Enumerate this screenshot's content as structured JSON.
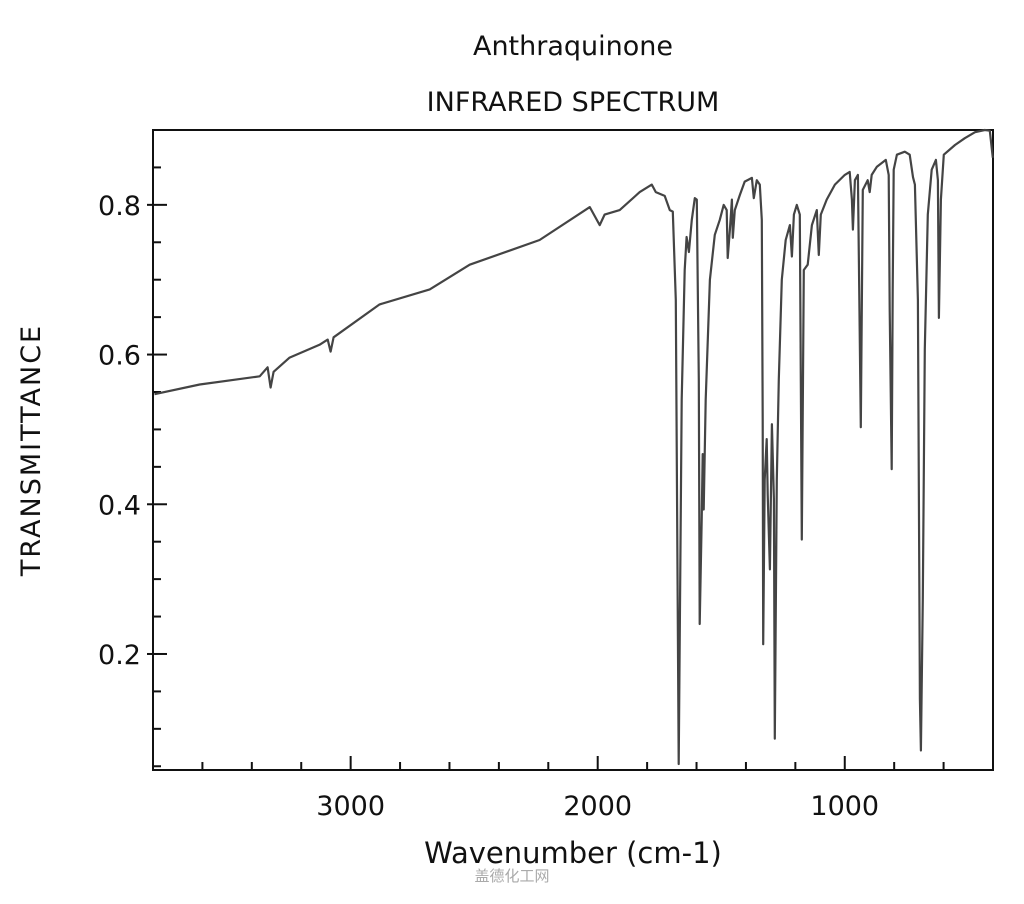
{
  "chart_data": {
    "type": "line",
    "title": "Anthraquinone",
    "subtitle": "INFRARED SPECTRUM",
    "xlabel": "Wavenumber (cm-1)",
    "ylabel": "TRANSMITTANCE",
    "xlim": [
      3800,
      400
    ],
    "x_reversed": true,
    "ylim": [
      0.045,
      0.9
    ],
    "x_ticks": [
      3000,
      2000,
      1000
    ],
    "x_tick_labels": [
      "3000",
      "2000",
      "1000"
    ],
    "y_ticks": [
      0.2,
      0.4,
      0.6,
      0.8
    ],
    "y_tick_labels": [
      "0.2",
      "0.4",
      "0.6",
      "0.8"
    ],
    "grid": false,
    "line_color": "#444444",
    "series": [
      {
        "x": [
          3794,
          3611,
          3368,
          3336,
          3324,
          3312,
          3247,
          3126,
          3093,
          3081,
          3069,
          2883,
          2680,
          2518,
          2235,
          2032,
          1992,
          1972,
          1911,
          1830,
          1781,
          1765,
          1729,
          1708,
          1696,
          1684,
          1672,
          1660,
          1648,
          1640,
          1631,
          1619,
          1607,
          1599,
          1591,
          1587,
          1579,
          1575,
          1571,
          1563,
          1546,
          1526,
          1506,
          1490,
          1478,
          1474,
          1465,
          1457,
          1453,
          1445,
          1425,
          1405,
          1376,
          1368,
          1356,
          1344,
          1336,
          1332,
          1330,
          1324,
          1316,
          1312,
          1303,
          1295,
          1287,
          1283,
          1275,
          1267,
          1255,
          1239,
          1222,
          1214,
          1206,
          1194,
          1182,
          1174,
          1166,
          1150,
          1133,
          1113,
          1105,
          1097,
          1073,
          1040,
          1000,
          980,
          971,
          967,
          959,
          947,
          935,
          927,
          907,
          899,
          891,
          870,
          834,
          822,
          818,
          810,
          806,
          802,
          789,
          757,
          737,
          724,
          716,
          704,
          696,
          692,
          684,
          676,
          664,
          648,
          631,
          623,
          619,
          611,
          599,
          554,
          514,
          473,
          433,
          413,
          401
        ],
        "y": [
          0.547,
          0.56,
          0.571,
          0.583,
          0.556,
          0.577,
          0.596,
          0.613,
          0.62,
          0.604,
          0.623,
          0.667,
          0.687,
          0.72,
          0.753,
          0.797,
          0.773,
          0.787,
          0.793,
          0.817,
          0.827,
          0.817,
          0.812,
          0.793,
          0.791,
          0.673,
          0.053,
          0.54,
          0.713,
          0.757,
          0.737,
          0.78,
          0.809,
          0.807,
          0.567,
          0.24,
          0.38,
          0.467,
          0.393,
          0.54,
          0.7,
          0.76,
          0.78,
          0.8,
          0.793,
          0.729,
          0.767,
          0.807,
          0.756,
          0.793,
          0.813,
          0.831,
          0.836,
          0.809,
          0.833,
          0.827,
          0.78,
          0.513,
          0.213,
          0.433,
          0.487,
          0.413,
          0.313,
          0.507,
          0.407,
          0.087,
          0.433,
          0.567,
          0.7,
          0.753,
          0.773,
          0.731,
          0.787,
          0.8,
          0.787,
          0.353,
          0.713,
          0.72,
          0.773,
          0.793,
          0.733,
          0.787,
          0.807,
          0.827,
          0.84,
          0.844,
          0.807,
          0.767,
          0.833,
          0.84,
          0.503,
          0.82,
          0.833,
          0.817,
          0.84,
          0.851,
          0.86,
          0.84,
          0.66,
          0.447,
          0.687,
          0.847,
          0.867,
          0.871,
          0.867,
          0.837,
          0.827,
          0.673,
          0.14,
          0.071,
          0.273,
          0.607,
          0.787,
          0.847,
          0.86,
          0.833,
          0.649,
          0.807,
          0.867,
          0.88,
          0.889,
          0.897,
          0.9,
          0.899,
          0.863
        ]
      }
    ]
  },
  "watermark": "盖德化工网"
}
